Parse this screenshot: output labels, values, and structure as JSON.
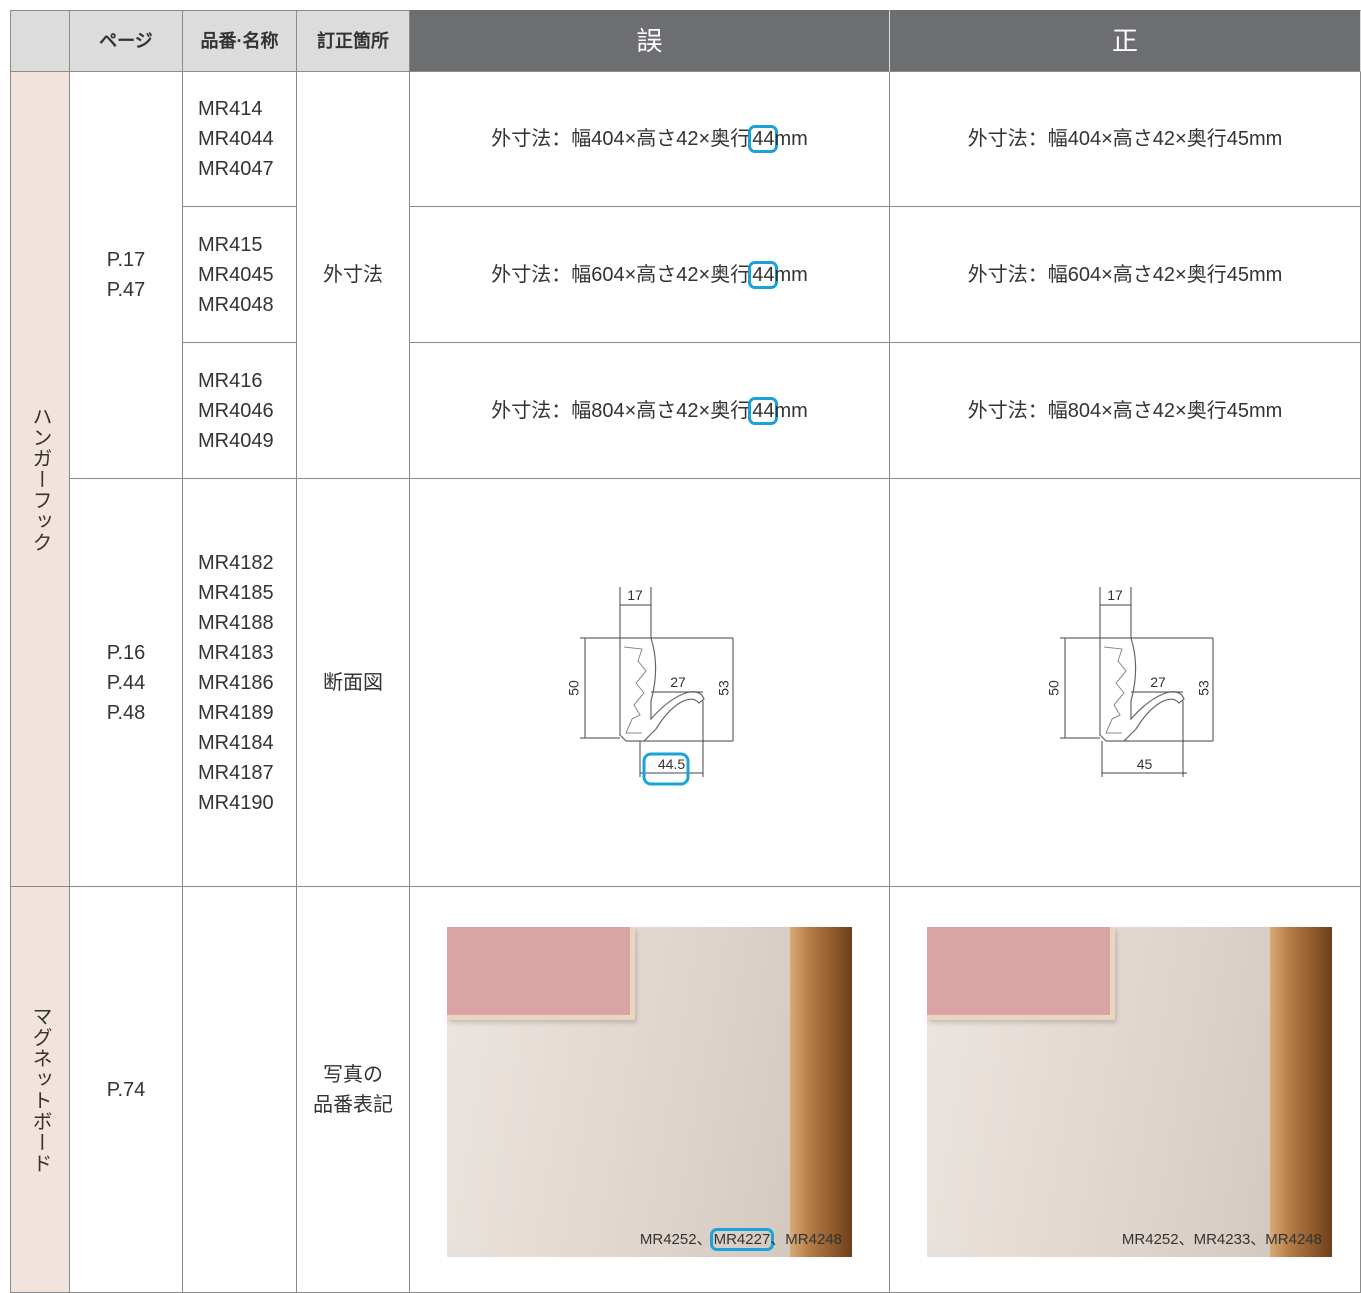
{
  "header": {
    "page": "ページ",
    "product": "品番·名称",
    "location": "訂正箇所",
    "wrong": "誤",
    "right": "正"
  },
  "sections": [
    {
      "category": "ハンガーフック",
      "groups": [
        {
          "pages": [
            "P.17",
            "P.47"
          ],
          "location": [
            "外寸法"
          ],
          "rows": [
            {
              "products": [
                "MR414",
                "MR4044",
                "MR4047"
              ],
              "wrong": {
                "before": "外寸法：幅404×高さ42×奥行",
                "highlight": "44",
                "after": "mm"
              },
              "right": "外寸法：幅404×高さ42×奥行45mm"
            },
            {
              "products": [
                "MR415",
                "MR4045",
                "MR4048"
              ],
              "wrong": {
                "before": "外寸法：幅604×高さ42×奥行",
                "highlight": "44",
                "after": "mm"
              },
              "right": "外寸法：幅604×高さ42×奥行45mm"
            },
            {
              "products": [
                "MR416",
                "MR4046",
                "MR4049"
              ],
              "wrong": {
                "before": "外寸法：幅804×高さ42×奥行",
                "highlight": "44",
                "after": "mm"
              },
              "right": "外寸法：幅804×高さ42×奥行45mm"
            }
          ]
        },
        {
          "pages": [
            "P.16",
            "P.44",
            "P.48"
          ],
          "location": [
            "断面図"
          ],
          "rows": [
            {
              "products": [
                "MR4182",
                "MR4185",
                "MR4188",
                "MR4183",
                "MR4186",
                "MR4189",
                "MR4184",
                "MR4187",
                "MR4190"
              ],
              "wrong": {
                "diagram": {
                  "top": "17",
                  "left": "50",
                  "inner": "27",
                  "right": "53",
                  "bottom": "44.5"
                }
              },
              "right": {
                "diagram": {
                  "top": "17",
                  "left": "50",
                  "inner": "27",
                  "right": "53",
                  "bottom": "45"
                }
              }
            }
          ]
        }
      ]
    },
    {
      "category": "マグネットボード",
      "groups": [
        {
          "pages": [
            "P.74"
          ],
          "location": [
            "写真の",
            "品番表記"
          ],
          "rows": [
            {
              "products": [],
              "wrong": {
                "photo_caption": {
                  "before": "MR4252、",
                  "highlight": "MR4227",
                  "after": "、MR4248"
                }
              },
              "right": {
                "photo_caption": "MR4252、MR4233、MR4248"
              }
            }
          ]
        }
      ]
    }
  ]
}
